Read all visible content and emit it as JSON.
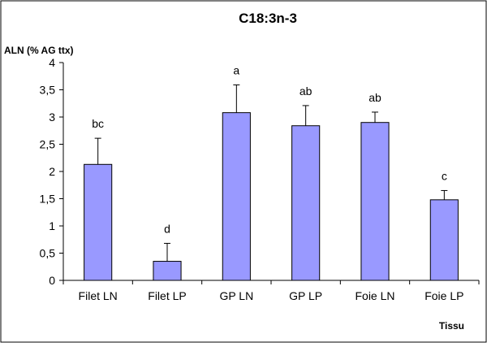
{
  "chart_data": {
    "type": "bar",
    "title": "C18:3n-3",
    "ylabel": "ALN  (% AG ttx)",
    "xlabel": "Tissu",
    "categories": [
      "Filet LN",
      "Filet LP",
      "GP LN",
      "GP LP",
      "Foie LN",
      "Foie LP"
    ],
    "values": [
      2.13,
      0.35,
      3.08,
      2.84,
      2.9,
      1.48
    ],
    "errors": [
      0.48,
      0.33,
      0.51,
      0.37,
      0.19,
      0.17
    ],
    "significance_letters": [
      "bc",
      "d",
      "a",
      "ab",
      "ab",
      "c"
    ],
    "yticks": [
      0,
      0.5,
      1,
      1.5,
      2,
      2.5,
      3,
      3.5,
      4
    ],
    "ytick_labels": [
      "0",
      "0,5",
      "1",
      "1,5",
      "2",
      "2,5",
      "3",
      "3,5",
      "4"
    ],
    "ylim": [
      0,
      4
    ],
    "grid": false,
    "legend": "none",
    "bar_color": "#9999ff",
    "bar_edge_color": "#000000"
  }
}
